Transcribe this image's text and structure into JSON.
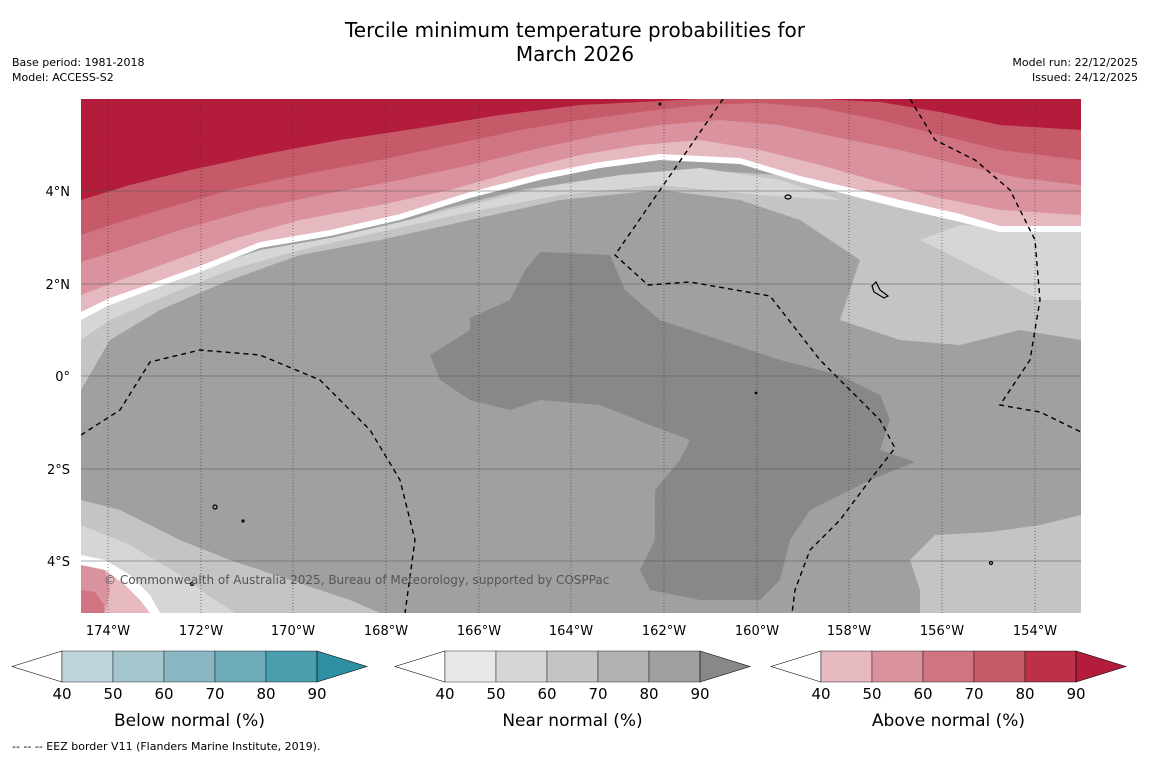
{
  "title": {
    "line1": "Tercile minimum temperature probabilities for",
    "line2": "March 2026"
  },
  "meta_left": {
    "base_period": "Base period: 1981-2018",
    "model": "Model: ACCESS-S2"
  },
  "meta_right": {
    "model_run": "Model run: 22/12/2025",
    "issued": "Issued: 24/12/2025"
  },
  "map": {
    "lat_labels": [
      "4°N",
      "2°N",
      "0°",
      "2°S",
      "4°S"
    ],
    "lon_labels": [
      "174°W",
      "172°W",
      "170°W",
      "168°W",
      "166°W",
      "164°W",
      "162°W",
      "160°W",
      "158°W",
      "156°W",
      "154°W"
    ],
    "copyright": "© Commonwealth of Australia 2025, Bureau of Meteorology, supported by COSPPac"
  },
  "colorbars": [
    {
      "title": "Below normal (%)",
      "ticks": [
        "40",
        "50",
        "60",
        "70",
        "80",
        "90"
      ],
      "colors": [
        "#ffffff",
        "#bed4dc",
        "#a6c6ce",
        "#89b8c4",
        "#6eacba",
        "#4a9eae",
        "#2f8fa3"
      ]
    },
    {
      "title": "Near normal (%)",
      "ticks": [
        "40",
        "50",
        "60",
        "70",
        "80",
        "90"
      ],
      "colors": [
        "#ffffff",
        "#e8e8e8",
        "#d6d6d6",
        "#c4c4c4",
        "#b2b2b2",
        "#a0a0a0",
        "#888888"
      ]
    },
    {
      "title": "Above normal (%)",
      "ticks": [
        "40",
        "50",
        "60",
        "70",
        "80",
        "90"
      ],
      "colors": [
        "#ffffff",
        "#e6b9c0",
        "#da939e",
        "#cf7480",
        "#c65a69",
        "#bc3148",
        "#b31c3b"
      ]
    }
  ],
  "eez_note": "--  --  -- EEZ border V11 (Flanders Marine Institute, 2019)."
}
